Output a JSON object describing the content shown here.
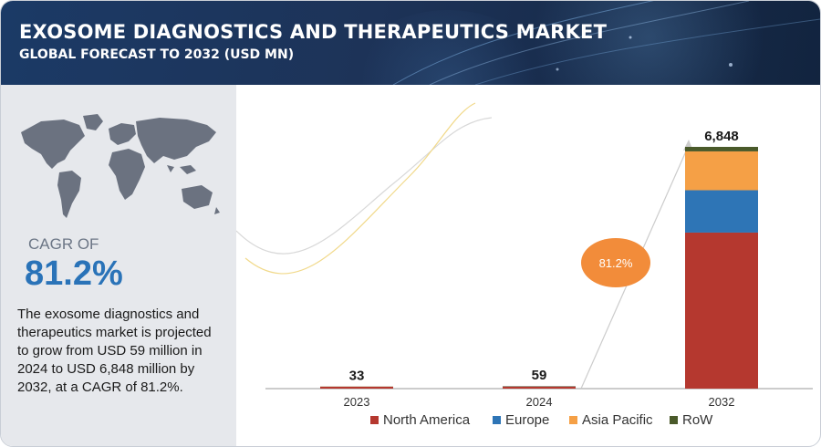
{
  "header": {
    "title": "EXOSOME DIAGNOSTICS AND THERAPEUTICS MARKET",
    "subtitle": "GLOBAL FORECAST TO 2032 (USD MN)"
  },
  "sidebar": {
    "cagr_label": "CAGR OF",
    "cagr_value": "81.2%",
    "description": "The exosome diagnostics and\ntherapeutics market is projected\nto grow from USD  59 million in\n2024 to USD 6,848 million by\n2032, at a CAGR of 81.2%."
  },
  "colors": {
    "north_america": "#b5382f",
    "europe": "#2e75b6",
    "asia_pacific": "#f5a046",
    "row": "#4a5a2a",
    "cagr_bubble": "#f28c3a",
    "header": "#1d3358"
  },
  "chart_data": {
    "type": "bar",
    "stacked": true,
    "categories": [
      "2023",
      "2024",
      "2032"
    ],
    "totals": [
      33,
      59,
      6848
    ],
    "total_labels": [
      "33",
      "59",
      "6,848"
    ],
    "series": [
      {
        "name": "North America",
        "values": [
          20,
          35,
          4420
        ]
      },
      {
        "name": "Europe",
        "values": [
          6,
          11,
          1200
        ]
      },
      {
        "name": "Asia Pacific",
        "values": [
          6,
          11,
          1100
        ]
      },
      {
        "name": "RoW",
        "values": [
          1,
          2,
          128
        ]
      }
    ],
    "ylim": [
      0,
      7000
    ],
    "annotation": "81.2%",
    "legend_position": "bottom"
  }
}
